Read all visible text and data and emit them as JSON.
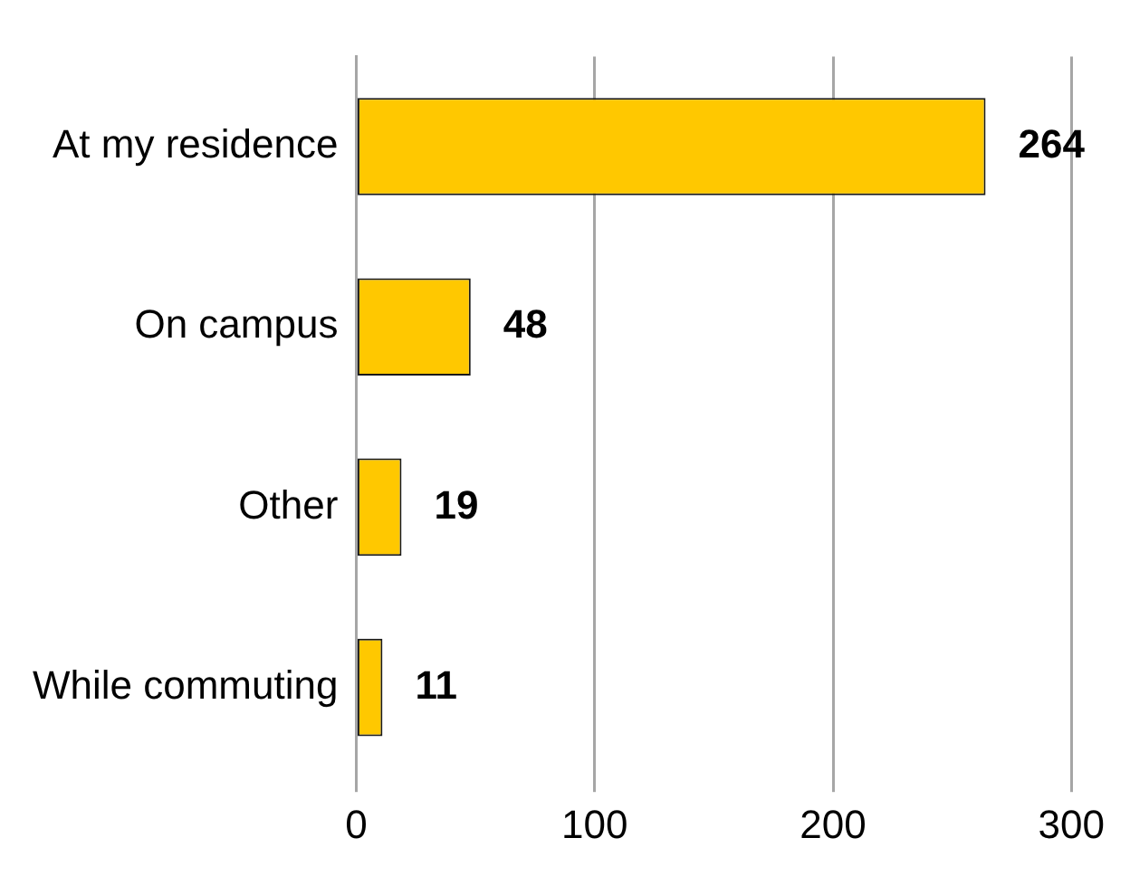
{
  "chart_data": {
    "type": "bar",
    "orientation": "horizontal",
    "categories": [
      "At my residence",
      "On campus",
      "Other",
      "While commuting"
    ],
    "values": [
      264,
      48,
      19,
      11
    ],
    "color": "#ffc800",
    "xlim": [
      0,
      300
    ],
    "xticks": [
      0,
      100,
      200,
      300
    ],
    "grid": "x",
    "data_labels": true,
    "legend": false
  }
}
